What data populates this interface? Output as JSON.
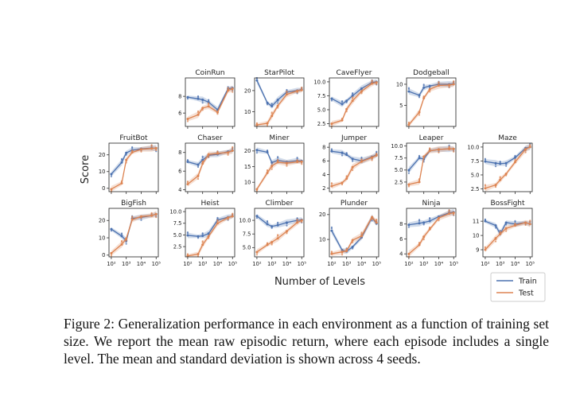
{
  "figure": {
    "caption": "Figure 2:  Generalization performance in each environment as a function of training set size. We report the mean raw episodic return, where each episode includes a single level.  The mean and standard deviation is shown across 4 seeds."
  },
  "chart_data": {
    "type": "line",
    "xscale": "log",
    "ylabel": "Score",
    "xlabel": "Number of Levels",
    "x": [
      100,
      500,
      1000,
      2500,
      10000,
      50000,
      100000
    ],
    "x_tick_labels": [
      "10²",
      "10³",
      "10⁴",
      "10⁵"
    ],
    "legend": {
      "placement": "bottom-right",
      "entries": [
        "Train",
        "Test"
      ]
    },
    "colors": {
      "train": "#4c72b0",
      "test": "#dd8452"
    },
    "panels": [
      {
        "title": "CoinRun",
        "ylim": [
          4.4,
          10.2
        ],
        "yticks": [
          6,
          8
        ],
        "train": [
          7.9,
          7.7,
          7.6,
          7.3,
          6.4,
          8.9,
          9.0
        ],
        "test": [
          5.3,
          5.8,
          6.6,
          6.8,
          6.1,
          8.7,
          8.9
        ]
      },
      {
        "title": "StarPilot",
        "ylim": [
          3,
          26
        ],
        "yticks": [
          10,
          20
        ],
        "train": [
          24.8,
          14.2,
          12.6,
          15.6,
          19.3,
          20.0,
          20.5
        ],
        "test": [
          3.7,
          4.5,
          8.0,
          12.8,
          18.2,
          19.8,
          20.2
        ]
      },
      {
        "title": "CaveFlyer",
        "ylim": [
          2.0,
          10.7
        ],
        "yticks": [
          2.5,
          5.0,
          7.5,
          10.0
        ],
        "train": [
          7.0,
          6.0,
          6.6,
          7.5,
          8.8,
          9.9,
          10.0
        ],
        "test": [
          2.5,
          3.1,
          5.1,
          6.6,
          8.3,
          9.7,
          9.9
        ]
      },
      {
        "title": "Dodgeball",
        "ylim": [
          0,
          11.5
        ],
        "yticks": [
          5,
          10
        ],
        "train": [
          8.3,
          7.4,
          9.2,
          9.6,
          10.0,
          10.0,
          10.1
        ],
        "test": [
          0.4,
          3.4,
          6.7,
          8.8,
          9.7,
          9.8,
          10.0
        ]
      },
      {
        "title": "FruitBot",
        "ylim": [
          -2,
          27
        ],
        "yticks": [
          0,
          10,
          20
        ],
        "train": [
          8.5,
          15.5,
          21.2,
          22.8,
          23.6,
          24.0,
          24.0
        ],
        "test": [
          -0.5,
          3.0,
          17.0,
          21.5,
          23.3,
          23.8,
          24.0
        ]
      },
      {
        "title": "Chaser",
        "ylim": [
          3.8,
          9.0
        ],
        "yticks": [
          4,
          6,
          8
        ],
        "train": [
          7.0,
          6.7,
          7.2,
          7.7,
          7.8,
          8.1,
          8.2
        ],
        "test": [
          4.6,
          5.5,
          6.8,
          7.8,
          7.9,
          8.0,
          8.2
        ]
      },
      {
        "title": "Miner",
        "ylim": [
          7,
          22.5
        ],
        "yticks": [
          10,
          15,
          20
        ],
        "train": [
          20.3,
          19.6,
          16.3,
          17.0,
          16.5,
          16.9,
          16.8
        ],
        "test": [
          7.8,
          13.0,
          15.2,
          16.4,
          16.1,
          16.5,
          16.6
        ]
      },
      {
        "title": "Jumper",
        "ylim": [
          1.5,
          8.6
        ],
        "yticks": [
          2,
          4,
          6,
          8
        ],
        "train": [
          7.4,
          7.2,
          6.9,
          6.3,
          6.0,
          6.6,
          6.9
        ],
        "test": [
          2.3,
          2.8,
          3.4,
          5.1,
          5.9,
          6.5,
          6.8
        ]
      },
      {
        "title": "Leaper",
        "ylim": [
          0.5,
          10.6
        ],
        "yticks": [
          2.5,
          5.0,
          7.5,
          10.0
        ],
        "train": [
          5.0,
          7.5,
          7.3,
          9.0,
          9.3,
          9.4,
          9.4
        ],
        "test": [
          2.0,
          2.5,
          7.8,
          9.0,
          9.3,
          9.4,
          9.4
        ]
      },
      {
        "title": "Maze",
        "ylim": [
          2.0,
          10.7
        ],
        "yticks": [
          2.5,
          5.0,
          7.5,
          10.0
        ],
        "train": [
          7.4,
          7.1,
          7.0,
          7.1,
          8.1,
          9.8,
          10.0
        ],
        "test": [
          2.6,
          3.2,
          4.1,
          5.2,
          7.3,
          9.6,
          10.0
        ]
      },
      {
        "title": "BigFish",
        "ylim": [
          -1,
          27
        ],
        "yticks": [
          0,
          10,
          20
        ],
        "train": [
          15.0,
          11.0,
          8.3,
          21.2,
          21.8,
          22.8,
          23.7
        ],
        "test": [
          1.1,
          6.2,
          9.5,
          20.5,
          22.3,
          22.8,
          23.7
        ]
      },
      {
        "title": "Heist",
        "ylim": [
          0.3,
          10.7
        ],
        "yticks": [
          2.5,
          5.0,
          7.5,
          10.0
        ],
        "train": [
          4.9,
          4.7,
          4.8,
          5.3,
          8.2,
          8.8,
          9.0
        ],
        "test": [
          0.5,
          0.9,
          2.9,
          4.7,
          7.5,
          8.7,
          9.0
        ]
      },
      {
        "title": "Climber",
        "ylim": [
          3.3,
          12.2
        ],
        "yticks": [
          5.0,
          7.5,
          10.0
        ],
        "train": [
          10.8,
          9.3,
          8.9,
          9.1,
          9.6,
          10.0,
          10.1
        ],
        "test": [
          4.2,
          5.5,
          6.0,
          6.7,
          8.0,
          9.6,
          10.0
        ]
      },
      {
        "title": "Plunder",
        "ylim": [
          3,
          22.5
        ],
        "yticks": [
          10,
          20
        ],
        "train": [
          13.5,
          5.7,
          5.2,
          7.0,
          10.8,
          18.8,
          16.4
        ],
        "test": [
          4.2,
          5.0,
          5.4,
          9.7,
          11.4,
          19.0,
          16.8
        ]
      },
      {
        "title": "Ninja",
        "ylim": [
          3.6,
          10.1
        ],
        "yticks": [
          4,
          6,
          8
        ],
        "train": [
          7.9,
          8.1,
          8.2,
          8.4,
          9.0,
          9.5,
          9.6
        ],
        "test": [
          4.0,
          5.2,
          6.3,
          7.3,
          8.8,
          9.4,
          9.5
        ]
      },
      {
        "title": "BossFight",
        "ylim": [
          8.5,
          11.9
        ],
        "yticks": [
          9,
          10,
          11
        ],
        "train": [
          11.0,
          10.7,
          10.1,
          10.9,
          10.8,
          10.9,
          10.8
        ],
        "test": [
          9.0,
          9.8,
          10.1,
          10.5,
          10.7,
          10.9,
          10.8
        ]
      }
    ]
  }
}
